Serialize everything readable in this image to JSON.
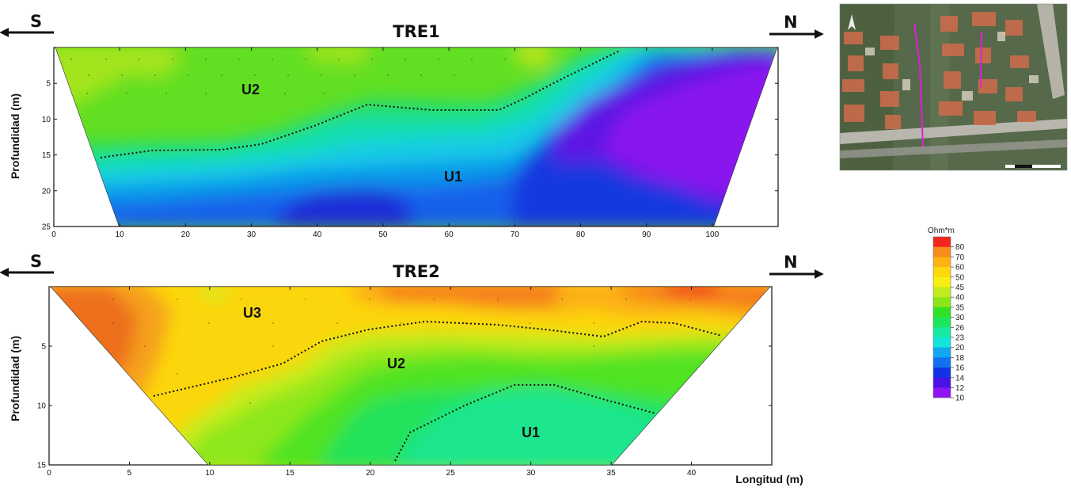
{
  "chart_data": [
    {
      "type": "heatmap",
      "title": "TRE1",
      "left_direction": "S",
      "right_direction": "N",
      "ylabel": "Profundidad (m)",
      "xlim": [
        0,
        110
      ],
      "ylim": [
        0,
        25
      ],
      "x_ticks": [
        "0",
        "10",
        "20",
        "30",
        "40",
        "50",
        "60",
        "70",
        "80",
        "90",
        "100"
      ],
      "y_ticks": [
        "5",
        "10",
        "15",
        "20",
        "25"
      ],
      "unit_labels": [
        "U2",
        "U1"
      ],
      "boundary": [
        [
          7,
          15.5
        ],
        [
          15,
          14.6
        ],
        [
          25,
          14.3
        ],
        [
          32,
          13.5
        ],
        [
          40,
          11
        ],
        [
          48,
          8
        ],
        [
          58,
          8.5
        ],
        [
          68,
          8.6
        ],
        [
          72,
          7
        ],
        [
          78,
          3
        ],
        [
          86,
          0.5
        ]
      ]
    },
    {
      "type": "heatmap",
      "title": "TRE2",
      "left_direction": "S",
      "right_direction": "N",
      "ylabel": "Profundidad (m)",
      "xlabel": "Longitud (m)",
      "xlim": [
        0,
        45
      ],
      "ylim": [
        0,
        15
      ],
      "x_ticks": [
        "0",
        "5",
        "10",
        "15",
        "20",
        "25",
        "30",
        "35",
        "40"
      ],
      "y_ticks": [
        "5",
        "10",
        "15"
      ],
      "unit_labels": [
        "U3",
        "U2",
        "U1"
      ],
      "boundary_upper": [
        [
          6.5,
          9.2
        ],
        [
          12,
          7.5
        ],
        [
          15,
          6.5
        ],
        [
          17,
          4.5
        ],
        [
          20,
          3.6
        ],
        [
          23.5,
          3
        ],
        [
          28,
          3.3
        ],
        [
          31,
          3.6
        ],
        [
          34.5,
          4.1
        ],
        [
          37,
          3
        ],
        [
          39,
          3.1
        ],
        [
          42.5,
          4.1
        ]
      ],
      "boundary_lower": [
        [
          21.5,
          15
        ],
        [
          22.5,
          12.3
        ],
        [
          26,
          10
        ],
        [
          29.5,
          8.3
        ],
        [
          32,
          8.3
        ],
        [
          35,
          9.3
        ],
        [
          37.5,
          10.7
        ]
      ]
    }
  ],
  "colorbar": {
    "title": "Ohm*m",
    "labels": [
      "80",
      "70",
      "60",
      "50",
      "45",
      "40",
      "35",
      "30",
      "26",
      "23",
      "20",
      "18",
      "16",
      "14",
      "12",
      "10"
    ],
    "colors": [
      "#f4251e",
      "#f78b1e",
      "#fbb316",
      "#fcd80c",
      "#f5ef14",
      "#c2ea1f",
      "#8ce51a",
      "#31e226",
      "#1ee55e",
      "#17e8a3",
      "#11e5d8",
      "#11a8ee",
      "#1171ee",
      "#1232e6",
      "#4a13e6",
      "#9013f2"
    ]
  },
  "colors": {
    "sat_bg": "#566b48",
    "sat_road": "#b8b8ad",
    "sat_line": "#e020d8"
  }
}
